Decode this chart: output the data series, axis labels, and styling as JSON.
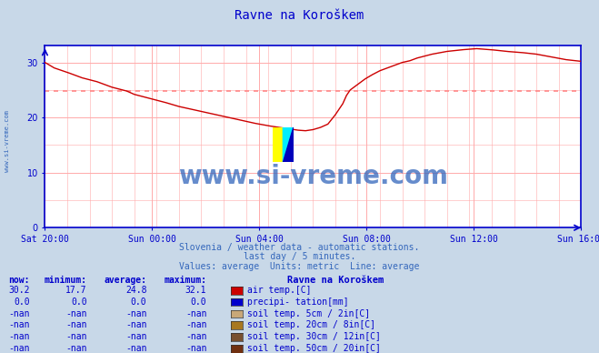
{
  "title": "Ravne na Koroškem",
  "bg_color": "#c8d8e8",
  "plot_bg_color": "#ffffff",
  "line_color": "#cc0000",
  "avg_line_color": "#ff8888",
  "avg_line_value": 24.8,
  "ylim": [
    0,
    33
  ],
  "yticks": [
    0,
    10,
    20,
    30
  ],
  "axis_color": "#0000cc",
  "grid_color": "#ffaaaa",
  "watermark_text": "www.si-vreme.com",
  "watermark_color": "#3366bb",
  "subtitle1": "Slovenia / weather data - automatic stations.",
  "subtitle2": "last day / 5 minutes.",
  "subtitle3": "Values: average  Units: metric  Line: average",
  "subtitle_color": "#3366bb",
  "legend_header": "Ravne na Koröškem",
  "legend_items": [
    {
      "label": "air temp.[C]",
      "color": "#cc0000",
      "now": "30.2",
      "min": "17.7",
      "avg": "24.8",
      "max": "32.1"
    },
    {
      "label": "precipi- tation[mm]",
      "color": "#0000cc",
      "now": "0.0",
      "min": "0.0",
      "avg": "0.0",
      "max": "0.0"
    },
    {
      "label": "soil temp. 5cm / 2in[C]",
      "color": "#c8a878",
      "now": "-nan",
      "min": "-nan",
      "avg": "-nan",
      "max": "-nan"
    },
    {
      "label": "soil temp. 20cm / 8in[C]",
      "color": "#a87820",
      "now": "-nan",
      "min": "-nan",
      "avg": "-nan",
      "max": "-nan"
    },
    {
      "label": "soil temp. 30cm / 12in[C]",
      "color": "#785030",
      "now": "-nan",
      "min": "-nan",
      "avg": "-nan",
      "max": "-nan"
    },
    {
      "label": "soil temp. 50cm / 20in[C]",
      "color": "#703010",
      "now": "-nan",
      "min": "-nan",
      "avg": "-nan",
      "max": "-nan"
    }
  ],
  "col_headers": [
    "now:",
    "minimum:",
    "average:",
    "maximum:"
  ],
  "xtick_labels": [
    "Sat 20:00",
    "Sun 00:00",
    "Sun 04:00",
    "Sun 08:00",
    "Sun 12:00",
    "Sun 16:00"
  ],
  "n_points": 289,
  "temp_points": [
    [
      0,
      30.0
    ],
    [
      5,
      29.0
    ],
    [
      12,
      28.2
    ],
    [
      20,
      27.2
    ],
    [
      28,
      26.5
    ],
    [
      36,
      25.5
    ],
    [
      44,
      24.8
    ],
    [
      48,
      24.2
    ],
    [
      56,
      23.5
    ],
    [
      64,
      22.8
    ],
    [
      72,
      22.0
    ],
    [
      80,
      21.4
    ],
    [
      88,
      20.8
    ],
    [
      96,
      20.2
    ],
    [
      104,
      19.6
    ],
    [
      112,
      19.0
    ],
    [
      120,
      18.5
    ],
    [
      128,
      18.1
    ],
    [
      136,
      17.7
    ],
    [
      140,
      17.6
    ],
    [
      144,
      17.8
    ],
    [
      148,
      18.2
    ],
    [
      152,
      18.8
    ],
    [
      156,
      20.5
    ],
    [
      160,
      22.5
    ],
    [
      162,
      24.0
    ],
    [
      164,
      25.0
    ],
    [
      168,
      26.0
    ],
    [
      172,
      27.0
    ],
    [
      176,
      27.8
    ],
    [
      180,
      28.5
    ],
    [
      184,
      29.0
    ],
    [
      188,
      29.5
    ],
    [
      192,
      30.0
    ],
    [
      196,
      30.3
    ],
    [
      200,
      30.8
    ],
    [
      208,
      31.5
    ],
    [
      216,
      32.0
    ],
    [
      224,
      32.3
    ],
    [
      232,
      32.5
    ],
    [
      240,
      32.3
    ],
    [
      248,
      32.0
    ],
    [
      256,
      31.8
    ],
    [
      264,
      31.5
    ],
    [
      272,
      31.0
    ],
    [
      280,
      30.5
    ],
    [
      288,
      30.2
    ]
  ]
}
